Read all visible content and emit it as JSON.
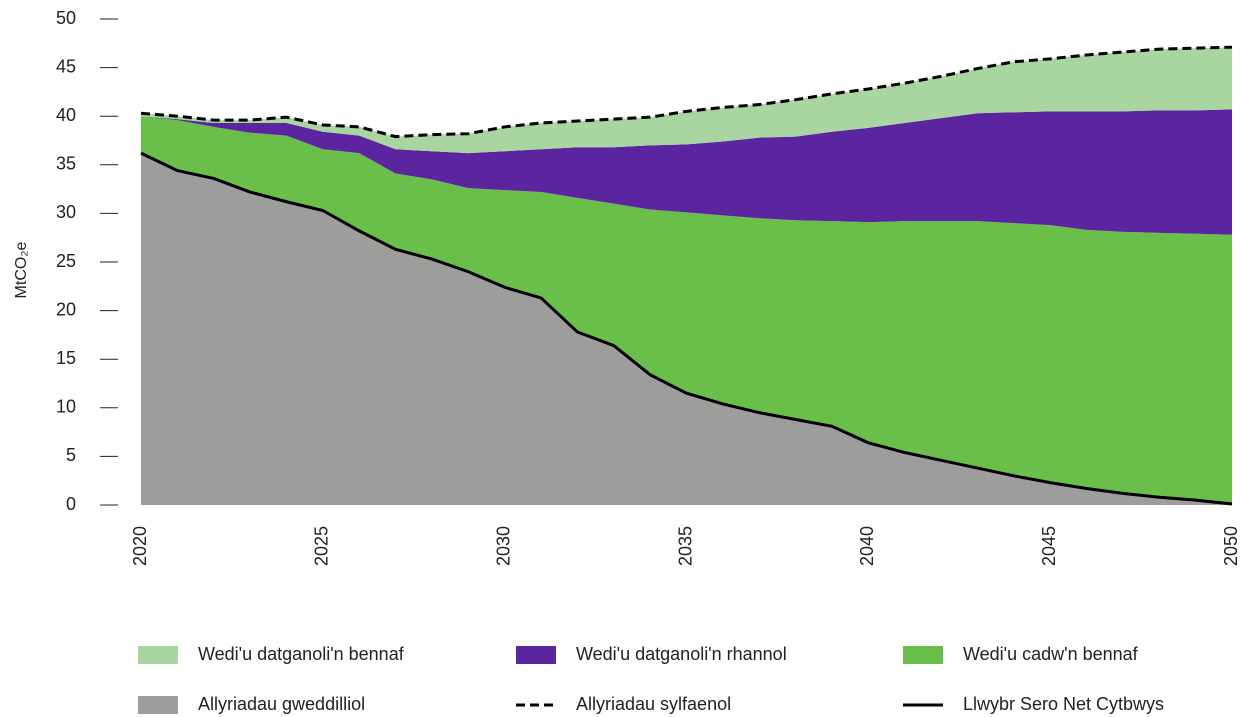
{
  "chart_data": {
    "type": "stacked_area",
    "y_label": "MtCO₂e",
    "x": [
      2020,
      2021,
      2022,
      2023,
      2024,
      2025,
      2026,
      2027,
      2028,
      2029,
      2030,
      2031,
      2032,
      2033,
      2034,
      2035,
      2036,
      2037,
      2038,
      2039,
      2040,
      2041,
      2042,
      2043,
      2044,
      2045,
      2046,
      2047,
      2048,
      2049,
      2050
    ],
    "xlim": [
      2020,
      2050
    ],
    "xticks": [
      2020,
      2025,
      2030,
      2035,
      2040,
      2045,
      2050
    ],
    "ylim": [
      0,
      50
    ],
    "yticks": [
      0,
      5,
      10,
      15,
      20,
      25,
      30,
      35,
      40,
      45,
      50
    ],
    "series": [
      {
        "name": "Wedi'u datganoli'n bennaf",
        "kind": "area",
        "color": "#a8d5a0",
        "values": [
          0.3,
          0.3,
          0.3,
          0.3,
          0.6,
          0.7,
          0.9,
          1.3,
          1.7,
          2.0,
          2.5,
          2.7,
          2.7,
          2.9,
          2.9,
          3.4,
          3.5,
          3.4,
          3.8,
          3.9,
          4.0,
          4.1,
          4.3,
          4.6,
          5.2,
          5.4,
          5.8,
          6.1,
          6.3,
          6.4,
          6.4
        ]
      },
      {
        "name": "Wedi'u datganoli'n rhannol",
        "kind": "area",
        "color": "#5b25a0",
        "values": [
          0.0,
          0.1,
          0.4,
          1.0,
          1.3,
          1.8,
          1.8,
          2.5,
          2.9,
          3.6,
          4.0,
          4.4,
          5.2,
          5.8,
          6.6,
          7.0,
          7.6,
          8.3,
          8.6,
          9.2,
          9.7,
          10.1,
          10.6,
          11.1,
          11.4,
          11.7,
          12.2,
          12.4,
          12.6,
          12.7,
          12.9
        ]
      },
      {
        "name": "Wedi'u cadw'n bennaf",
        "kind": "area",
        "color": "#6abf4b",
        "values": [
          3.8,
          5.2,
          5.3,
          6.1,
          6.8,
          6.3,
          8.0,
          7.8,
          8.2,
          8.6,
          10.0,
          10.9,
          13.8,
          14.6,
          17.0,
          18.6,
          19.4,
          20.0,
          20.5,
          21.1,
          22.7,
          23.8,
          24.6,
          25.4,
          26.0,
          26.5,
          26.6,
          26.9,
          27.2,
          27.4,
          27.7
        ]
      },
      {
        "name": "Allyriadau gweddilliol",
        "kind": "area",
        "color": "#9d9d9b",
        "values": [
          36.2,
          34.4,
          33.6,
          32.2,
          31.2,
          30.3,
          28.2,
          26.3,
          25.3,
          24.0,
          22.4,
          21.3,
          17.8,
          16.4,
          13.4,
          11.5,
          10.4,
          9.5,
          8.8,
          8.1,
          6.4,
          5.4,
          4.6,
          3.8,
          3.0,
          2.3,
          1.7,
          1.2,
          0.8,
          0.5,
          0.1
        ]
      },
      {
        "name": "Allyriadau sylfaenol",
        "kind": "line",
        "dashed": true,
        "color": "#000000",
        "values": [
          40.3,
          40.0,
          39.6,
          39.6,
          39.9,
          39.1,
          38.9,
          37.9,
          38.1,
          38.2,
          38.9,
          39.3,
          39.5,
          39.7,
          39.9,
          40.5,
          40.9,
          41.2,
          41.7,
          42.3,
          42.8,
          43.4,
          44.1,
          44.9,
          45.6,
          45.9,
          46.3,
          46.6,
          46.9,
          47.0,
          47.1
        ]
      },
      {
        "name": "Llwybr Sero Net Cytbwys",
        "kind": "line",
        "dashed": false,
        "color": "#000000",
        "values": [
          36.2,
          34.4,
          33.6,
          32.2,
          31.2,
          30.3,
          28.2,
          26.3,
          25.3,
          24.0,
          22.4,
          21.3,
          17.8,
          16.4,
          13.4,
          11.5,
          10.4,
          9.5,
          8.8,
          8.1,
          6.4,
          5.4,
          4.6,
          3.8,
          3.0,
          2.3,
          1.7,
          1.2,
          0.8,
          0.5,
          0.1
        ]
      }
    ]
  }
}
